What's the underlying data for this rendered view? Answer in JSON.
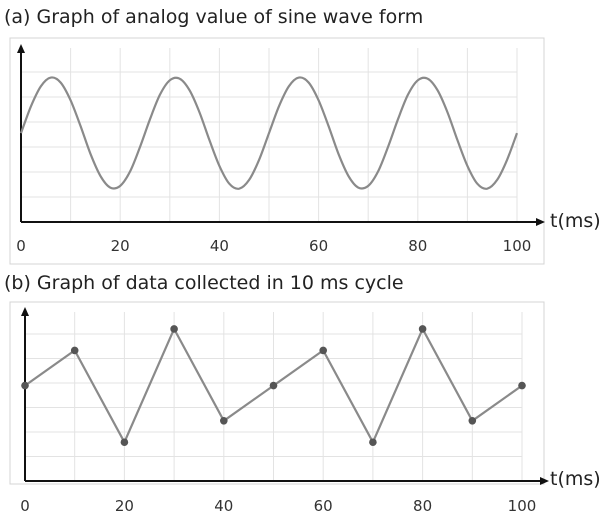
{
  "chart_data": [
    {
      "type": "line",
      "title": "(a) Graph of analog value of sine wave form",
      "xlabel": "t(ms)",
      "ylabel": "",
      "x_ticks": [
        "0",
        "20",
        "40",
        "60",
        "80",
        "100"
      ],
      "xlim": [
        0,
        100
      ],
      "ylim": [
        -1.6,
        1.1
      ],
      "grid": true,
      "series": [
        {
          "x": [
            0,
            2,
            4,
            6,
            8,
            10,
            12,
            14,
            16,
            18,
            20,
            22,
            24,
            26,
            28,
            30,
            32,
            34,
            36,
            38,
            40,
            42,
            44,
            46,
            48,
            50,
            52,
            54,
            56,
            58,
            60,
            62,
            64,
            66,
            68,
            70,
            72,
            74,
            76,
            78,
            80,
            82,
            84,
            86,
            88,
            90,
            92,
            94,
            96,
            98,
            100
          ],
          "values": [
            0,
            0.48,
            0.84,
            1,
            0.91,
            0.59,
            0.13,
            -0.37,
            -0.77,
            -0.98,
            -0.95,
            -0.69,
            -0.25,
            0.25,
            0.69,
            0.95,
            0.98,
            0.77,
            0.37,
            -0.13,
            -0.59,
            -0.91,
            -1,
            -0.84,
            -0.48,
            0,
            0.48,
            0.84,
            1,
            0.91,
            0.59,
            0.13,
            -0.37,
            -0.77,
            -0.98,
            -0.95,
            -0.69,
            -0.25,
            0.25,
            0.69,
            0.95,
            0.98,
            0.77,
            0.37,
            -0.13,
            -0.59,
            -0.91,
            -1,
            -0.84,
            -0.48,
            0
          ],
          "color": "#8a8a8a"
        }
      ]
    },
    {
      "type": "line",
      "title": "(b) Graph of data collected in 10 ms cycle",
      "xlabel": "t(ms)",
      "ylabel": "",
      "x_ticks": [
        "0",
        "20",
        "40",
        "60",
        "80",
        "100"
      ],
      "xlim": [
        0,
        100
      ],
      "ylim": [
        -1.6,
        1.1
      ],
      "grid": true,
      "series": [
        {
          "x": [
            0,
            10,
            20,
            30,
            40,
            50,
            60,
            70,
            80,
            90,
            100
          ],
          "values": [
            0,
            0.59,
            -0.95,
            0.95,
            -0.59,
            0,
            0.59,
            -0.95,
            0.95,
            -0.59,
            0
          ],
          "markers": true,
          "color": "#8a8a8a"
        }
      ]
    }
  ]
}
